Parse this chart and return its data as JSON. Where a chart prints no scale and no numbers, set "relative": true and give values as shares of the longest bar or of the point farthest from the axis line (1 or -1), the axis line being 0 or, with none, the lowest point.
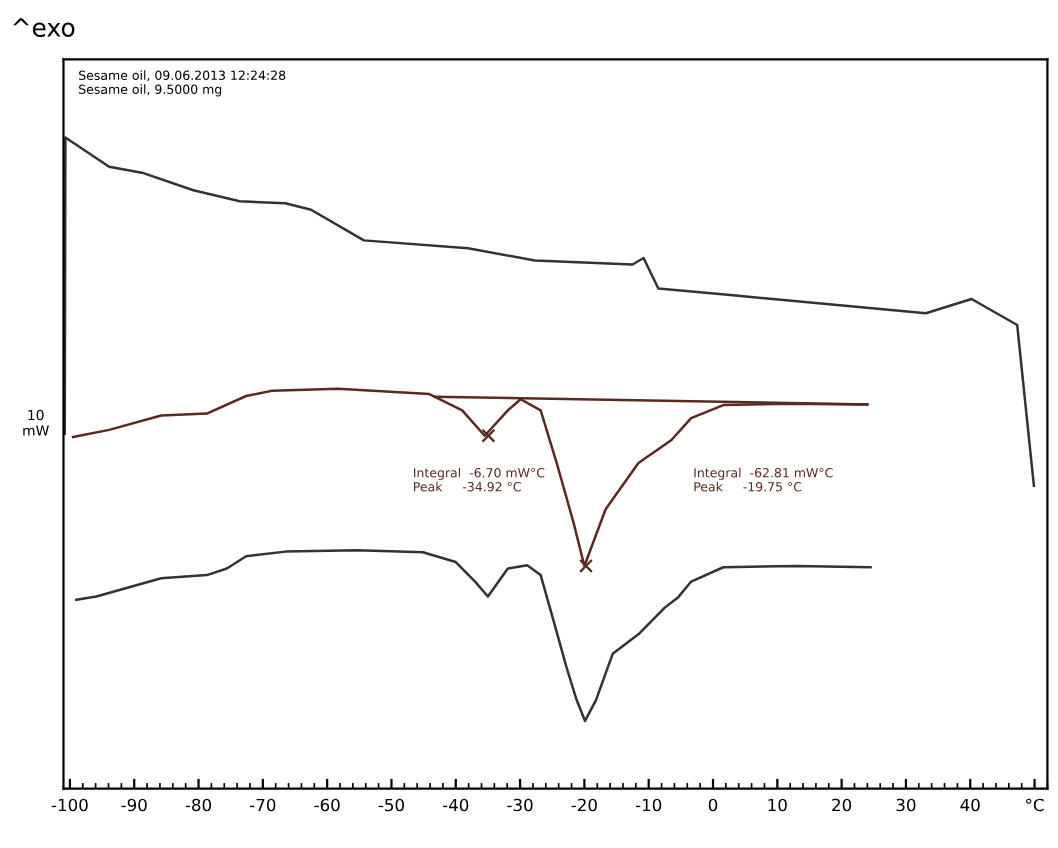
{
  "chart_data": {
    "type": "line",
    "relative": true,
    "title": "^exo",
    "ylabel": "10\nmW",
    "annotations": [
      "Sesame oil, 09.06.2013 12:24:28\nSesame oil, 9.5000 mg",
      "Integral  -6.70 mW°C\nPeak     -34.92 °C",
      "Integral  -62.81 mW°C\nPeak     -19.75 °C"
    ],
    "xlim": [
      -101,
      52
    ],
    "xticks": [
      -100,
      -90,
      -80,
      -70,
      -60,
      -50,
      -40,
      -30,
      -20,
      -10,
      0,
      10,
      20,
      30,
      40,
      {
        "value": 50,
        "label": "°C"
      }
    ],
    "grid": false,
    "legend": false,
    "line_style": "solid",
    "marker": "none",
    "series": [
      {
        "color": "#333333",
        "x": [
          -100.8,
          -100.7,
          -93.9,
          -88.8,
          -80.8,
          -73.6,
          -66.5,
          -62.5,
          -54.3,
          -38.1,
          -27.7,
          -12.5,
          -10.8,
          -8.5,
          2.7,
          33.1,
          40.2,
          47.3,
          49.9
        ],
        "values": [
          0.545,
          1.0,
          0.955,
          0.946,
          0.919,
          0.902,
          0.899,
          0.889,
          0.842,
          0.83,
          0.811,
          0.805,
          0.815,
          0.768,
          0.758,
          0.73,
          0.752,
          0.712,
          0.465
        ]
      },
      {
        "color": "#5a2a20",
        "x": [
          -99.5,
          -93.9,
          -85.8,
          -78.7,
          -72.6,
          -68.6,
          -58.3,
          -44.1,
          -39.0,
          -35.5,
          -31.9,
          -29.9,
          -26.8,
          -24.3,
          -21.7,
          -20.0,
          -16.7,
          -11.6,
          -6.5,
          -3.4,
          1.6,
          10.8,
          24.0
        ],
        "values": [
          0.54,
          0.551,
          0.573,
          0.576,
          0.603,
          0.611,
          0.614,
          0.606,
          0.581,
          0.542,
          0.581,
          0.598,
          0.581,
          0.5,
          0.409,
          0.342,
          0.429,
          0.5,
          0.535,
          0.569,
          0.589,
          0.591,
          0.59
        ]
      },
      {
        "color": "#5a2a20",
        "x": [
          -43.3,
          24.0
        ],
        "values": [
          0.602,
          0.59
        ]
      },
      {
        "type": "scatter",
        "marker": "cross",
        "color": "#5a2a20",
        "x": [
          -34.92,
          -19.75
        ],
        "values": [
          0.542,
          0.342
        ]
      },
      {
        "color": "#333333",
        "x": [
          -99.0,
          -95.9,
          -85.8,
          -78.7,
          -75.6,
          -72.6,
          -66.5,
          -55.3,
          -45.1,
          -40.0,
          -37.0,
          -35.0,
          -31.9,
          -28.9,
          -26.8,
          -24.8,
          -22.8,
          -21.2,
          -19.9,
          -18.2,
          -15.6,
          -11.6,
          -7.5,
          -5.5,
          -3.4,
          1.6,
          12.8,
          24.5
        ],
        "values": [
          0.29,
          0.295,
          0.323,
          0.328,
          0.338,
          0.357,
          0.364,
          0.366,
          0.363,
          0.348,
          0.318,
          0.295,
          0.338,
          0.343,
          0.328,
          0.258,
          0.187,
          0.136,
          0.104,
          0.136,
          0.207,
          0.237,
          0.278,
          0.293,
          0.318,
          0.34,
          0.342,
          0.34
        ]
      }
    ]
  }
}
